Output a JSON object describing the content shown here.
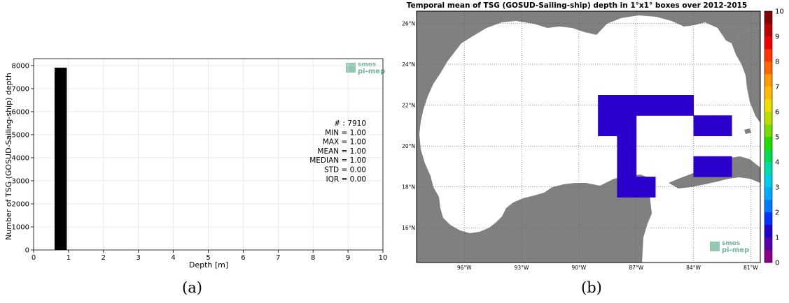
{
  "chart_data": [
    {
      "type": "bar",
      "xlabel": "Depth [m]",
      "ylabel": "Number of TSG (GOSUD-Sailing-ship) depth",
      "xlim": [
        0,
        10
      ],
      "ylim": [
        0,
        8300
      ],
      "xticks": [
        "0",
        "1",
        "2",
        "3",
        "4",
        "5",
        "6",
        "7",
        "8",
        "9",
        "10"
      ],
      "yticks": [
        "0",
        "1000",
        "2000",
        "3000",
        "4000",
        "5000",
        "6000",
        "7000",
        "8000"
      ],
      "bins": [
        {
          "x0": 0.6,
          "x1": 0.95,
          "count": 7910
        }
      ],
      "bar_color": "#000000",
      "grid": true,
      "stats": [
        "# : 7910",
        "MIN = 1.00",
        "MAX =  1.00",
        "MEAN = 1.00",
        "MEDIAN = 1.00",
        "STD = 0.00",
        "IQR = 0.00"
      ],
      "logo": {
        "line1": "smos",
        "line2": "pi-mep",
        "color": "#6fb59a"
      }
    },
    {
      "type": "heatmap",
      "title": "Temporal mean of TSG (GOSUD-Sailing-ship) depth in 1°x1° boxes over 2012-2015",
      "xlim": [
        -98.5,
        -80.5
      ],
      "ylim": [
        14.3,
        26.6
      ],
      "lat_ticks": [
        {
          "value": 26,
          "label": "26°N"
        },
        {
          "value": 24,
          "label": "24°N"
        },
        {
          "value": 22,
          "label": "22°N"
        },
        {
          "value": 20,
          "label": "20°N"
        },
        {
          "value": 18,
          "label": "18°N"
        },
        {
          "value": 16,
          "label": "16°N"
        }
      ],
      "lon_ticks": [
        {
          "value": -96,
          "label": "96°W"
        },
        {
          "value": -93,
          "label": "93°W"
        },
        {
          "value": -90,
          "label": "90°W"
        },
        {
          "value": -87,
          "label": "87°W"
        },
        {
          "value": -84,
          "label": "84°W"
        },
        {
          "value": -81,
          "label": "81°W"
        }
      ],
      "cells": [
        {
          "lon_min": -89,
          "lat_min": 21.5,
          "value": 1
        },
        {
          "lon_min": -88,
          "lat_min": 21.5,
          "value": 1
        },
        {
          "lon_min": -87,
          "lat_min": 21.5,
          "value": 1
        },
        {
          "lon_min": -86,
          "lat_min": 21.5,
          "value": 1
        },
        {
          "lon_min": -85,
          "lat_min": 21.5,
          "value": 1
        },
        {
          "lon_min": -89,
          "lat_min": 20.5,
          "value": 1
        },
        {
          "lon_min": -88,
          "lat_min": 20.5,
          "value": 1
        },
        {
          "lon_min": -84,
          "lat_min": 20.5,
          "value": 1
        },
        {
          "lon_min": -83,
          "lat_min": 20.5,
          "value": 1
        },
        {
          "lon_min": -88,
          "lat_min": 19.5,
          "value": 1
        },
        {
          "lon_min": -88,
          "lat_min": 18.5,
          "value": 1
        },
        {
          "lon_min": -84,
          "lat_min": 18.5,
          "value": 1
        },
        {
          "lon_min": -83,
          "lat_min": 18.5,
          "value": 1
        },
        {
          "lon_min": -88,
          "lat_min": 17.5,
          "value": 1
        },
        {
          "lon_min": -87,
          "lat_min": 17.5,
          "value": 1
        }
      ],
      "cell_color": "#2b00cc",
      "land_color": "#808080",
      "ocean_color": "#ffffff",
      "colorbar": {
        "min": 0,
        "max": 10,
        "ticks": [
          "0",
          "1",
          "2",
          "3",
          "4",
          "5",
          "6",
          "7",
          "8",
          "9",
          "10"
        ],
        "colors": [
          "#8b008b",
          "#5500aa",
          "#2200cc",
          "#0033ff",
          "#0077ff",
          "#00aaff",
          "#00ccee",
          "#00ddaa",
          "#00dd55",
          "#22dd00",
          "#77dd00",
          "#bbdd00",
          "#eedd00",
          "#ffbb00",
          "#ff9900",
          "#ff6600",
          "#ff3300",
          "#ee0000",
          "#bb0000",
          "#880000"
        ]
      },
      "logo": {
        "line1": "smos",
        "line2": "pi-mep",
        "color": "#6fb59a"
      }
    }
  ],
  "captions": {
    "a": "(a)",
    "b": "(b)"
  }
}
